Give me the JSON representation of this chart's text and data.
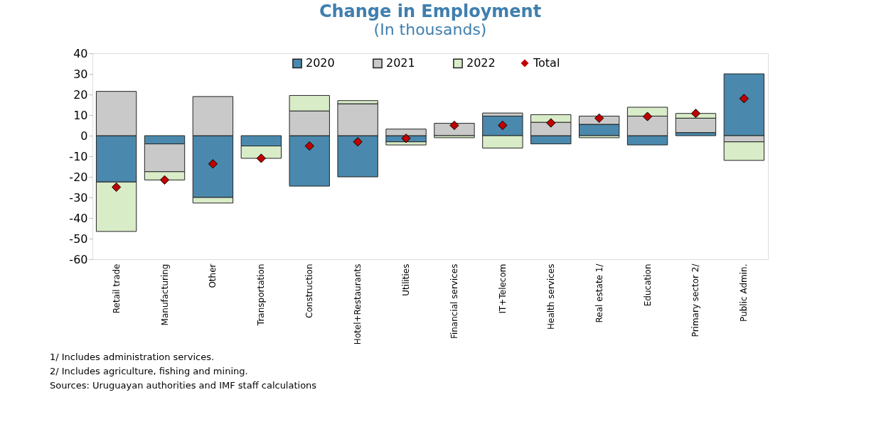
{
  "chart_data": {
    "type": "bar",
    "title": "Change in Employment",
    "subtitle": "(In thousands)",
    "categories": [
      "Retail trade",
      "Manufacturing",
      "Other",
      "Transportation",
      "Construction",
      "Hotel+Restaurants",
      "Utilities",
      "Financial services",
      "IT+Telecom",
      "Health services",
      "Real estate 1/",
      "Education",
      "Primary sector 2/",
      "Public Admin."
    ],
    "stacked": true,
    "series": [
      {
        "name": "2020",
        "color": "#4a89ad",
        "values": [
          -22.5,
          -4,
          -30,
          -5,
          -24.5,
          -20,
          -3,
          0,
          9.5,
          -4,
          5.5,
          -4.5,
          1.5,
          30
        ]
      },
      {
        "name": "2021",
        "color": "#c9c9c9",
        "values": [
          21.5,
          -13.5,
          19,
          0,
          12,
          15.5,
          3.2,
          6,
          1.5,
          6.5,
          4,
          9.5,
          7,
          -3
        ]
      },
      {
        "name": "2022",
        "color": "#d8ecc8",
        "values": [
          -24,
          -4,
          -2.7,
          -6,
          7.5,
          1.5,
          -1.5,
          -1,
          -6,
          3.7,
          -1,
          4.3,
          2.3,
          -9
        ]
      },
      {
        "name": "Total",
        "type": "scatter",
        "color": "#c00000",
        "marker": "diamond",
        "values": [
          -25,
          -21.5,
          -13.7,
          -11,
          -5,
          -3,
          -1.3,
          5,
          5,
          6.2,
          8.5,
          9.3,
          10.8,
          18
        ]
      }
    ],
    "ylim": [
      -60,
      40
    ],
    "yticks": [
      -60,
      -50,
      -40,
      -30,
      -20,
      -10,
      0,
      10,
      20,
      30,
      40
    ],
    "grid": false,
    "legend": "top",
    "annotations": [
      "1/ Includes administration services.",
      "2/ Includes agriculture, fishing and mining.",
      "Sources: Uruguayan authorities and IMF staff calculations"
    ]
  }
}
